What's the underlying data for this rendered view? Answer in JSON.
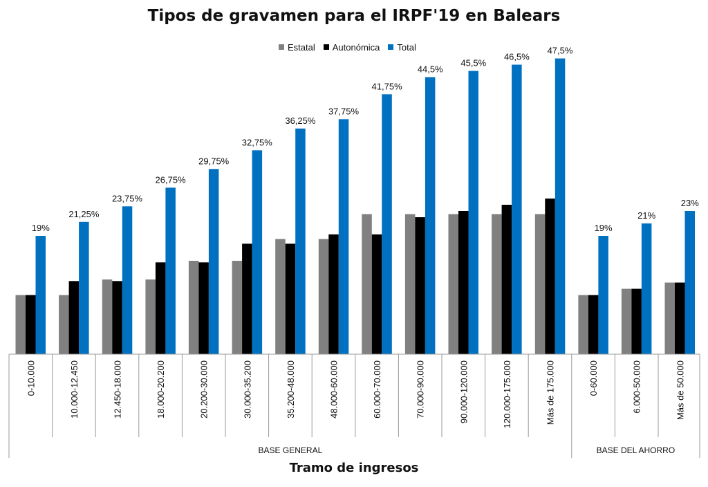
{
  "chart_data": {
    "type": "bar",
    "title": "Tipos de gravamen para el IRPF'19 en Balears",
    "xlabel": "Tramo de ingresos",
    "ylabel": "",
    "ylim": [
      0,
      50
    ],
    "grid": false,
    "legend_position": "top",
    "categories": [
      "0-10.000",
      "10.000-12.450",
      "12.450-18.000",
      "18.000-20.200",
      "20.200-30.000",
      "30.000-35.200",
      "35.200-48.000",
      "48.000-60.000",
      "60.000-70.000",
      "70.000-90.000",
      "90.000-120.000",
      "120.000-175.000",
      "Más de 175.000",
      "0-60.000",
      "6.000-50.000",
      "Más de 50.000"
    ],
    "groups": [
      {
        "label": "BASE GENERAL",
        "count": 13
      },
      {
        "label": "BASE DEL AHORRO",
        "count": 3
      }
    ],
    "series": [
      {
        "name": "Estatal",
        "color": "#808080",
        "values": [
          9.5,
          9.5,
          12,
          12,
          15,
          15,
          18.5,
          18.5,
          22.5,
          22.5,
          22.5,
          22.5,
          22.5,
          9.5,
          10.5,
          11.5
        ]
      },
      {
        "name": "Autonómica",
        "color": "#000000",
        "values": [
          9.5,
          11.75,
          11.75,
          14.75,
          14.75,
          17.75,
          17.75,
          19.25,
          19.25,
          22,
          23,
          24,
          25,
          9.5,
          10.5,
          11.5
        ]
      },
      {
        "name": "Total",
        "color": "#0070c0",
        "values": [
          19,
          21.25,
          23.75,
          26.75,
          29.75,
          32.75,
          36.25,
          37.75,
          41.75,
          44.5,
          45.5,
          46.5,
          47.5,
          19,
          21,
          23
        ],
        "data_labels": [
          "19%",
          "21,25%",
          "23,75%",
          "26,75%",
          "29,75%",
          "32,75%",
          "36,25%",
          "37,75%",
          "41,75%",
          "44,5%",
          "45,5%",
          "46,5%",
          "47,5%",
          "19%",
          "21%",
          "23%"
        ]
      }
    ]
  }
}
